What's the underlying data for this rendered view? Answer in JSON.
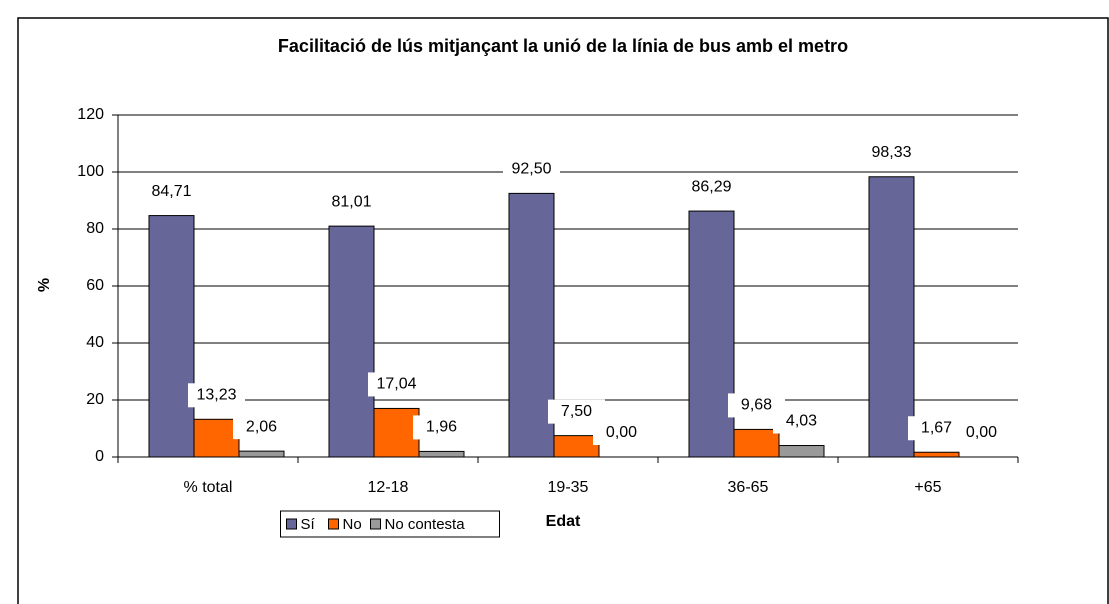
{
  "chart_data": {
    "type": "bar",
    "title": "Facilitació de lús mitjançant la unió de la línia de bus amb el metro",
    "xlabel": "Edat",
    "ylabel": "%",
    "categories": [
      "% total",
      "12-18",
      "19-35",
      "36-65",
      "+65"
    ],
    "series": [
      {
        "name": "Sí",
        "color": "#666699",
        "values": [
          84.71,
          81.01,
          92.5,
          86.29,
          98.33
        ],
        "value_labels": [
          "84,71",
          "81,01",
          "92,50",
          "86,29",
          "98,33"
        ]
      },
      {
        "name": "No",
        "color": "#ff6600",
        "values": [
          13.23,
          17.04,
          7.5,
          9.68,
          1.67
        ],
        "value_labels": [
          "13,23",
          "17,04",
          "7,50",
          "9,68",
          "1,67"
        ]
      },
      {
        "name": "No contesta",
        "color": "#999999",
        "values": [
          2.06,
          1.96,
          0,
          4.03,
          0
        ],
        "value_labels": [
          "2,06",
          "1,96",
          "0,00",
          "4,03",
          "0,00"
        ]
      }
    ],
    "ylim": [
      0,
      120
    ],
    "yticks": [
      0,
      20,
      40,
      60,
      80,
      100,
      120
    ],
    "grid": true,
    "legend": "bottom"
  }
}
